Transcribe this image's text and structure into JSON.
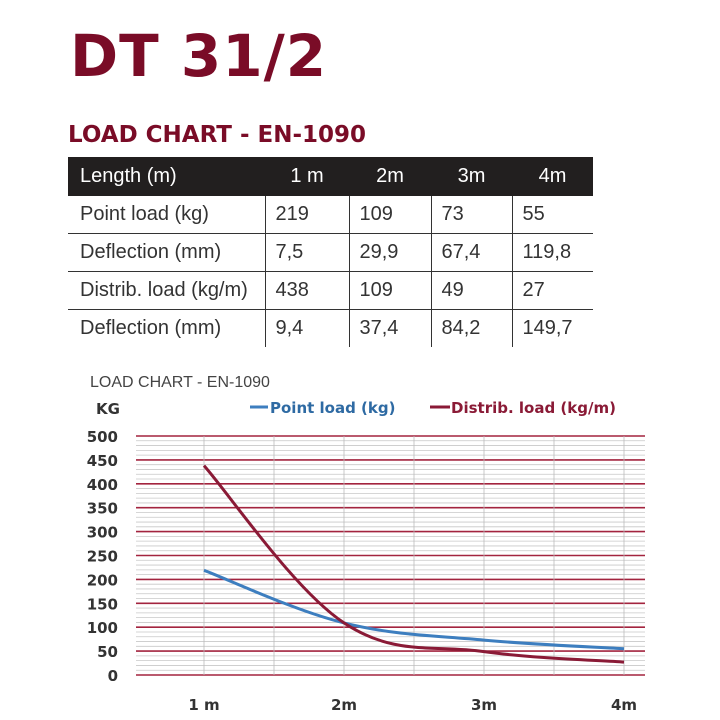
{
  "title": "DT 31/2",
  "subtitle": "LOAD CHART - EN-1090",
  "table": {
    "headers": [
      "Length (m)",
      "1 m",
      "2m",
      "3m",
      "4m"
    ],
    "rows": [
      [
        "Point load (kg)",
        "219",
        "109",
        "73",
        "55"
      ],
      [
        "Deflection (mm)",
        "7,5",
        "29,9",
        "67,4",
        "119,8"
      ],
      [
        "Distrib. load (kg/m)",
        "438",
        "109",
        "49",
        "27"
      ],
      [
        "Deflection (mm)",
        "9,4",
        "37,4",
        "84,2",
        "149,7"
      ]
    ]
  },
  "chart_data": {
    "type": "line",
    "title": "LOAD CHART - EN-1090",
    "ylabel": "KG",
    "categories": [
      "1 m",
      "2m",
      "3m",
      "4m"
    ],
    "ylim": [
      0,
      500
    ],
    "yticks": [
      "0",
      "50",
      "100",
      "150",
      "200",
      "250",
      "300",
      "350",
      "400",
      "450",
      "500"
    ],
    "grid": true,
    "legend": "top",
    "series": [
      {
        "name": "Point load (kg)",
        "values": [
          219,
          109,
          73,
          55
        ],
        "color": "#3d7ebf"
      },
      {
        "name": "Distrib. load (kg/m)",
        "values": [
          438,
          109,
          49,
          27
        ],
        "color": "#8a1a36"
      }
    ]
  }
}
